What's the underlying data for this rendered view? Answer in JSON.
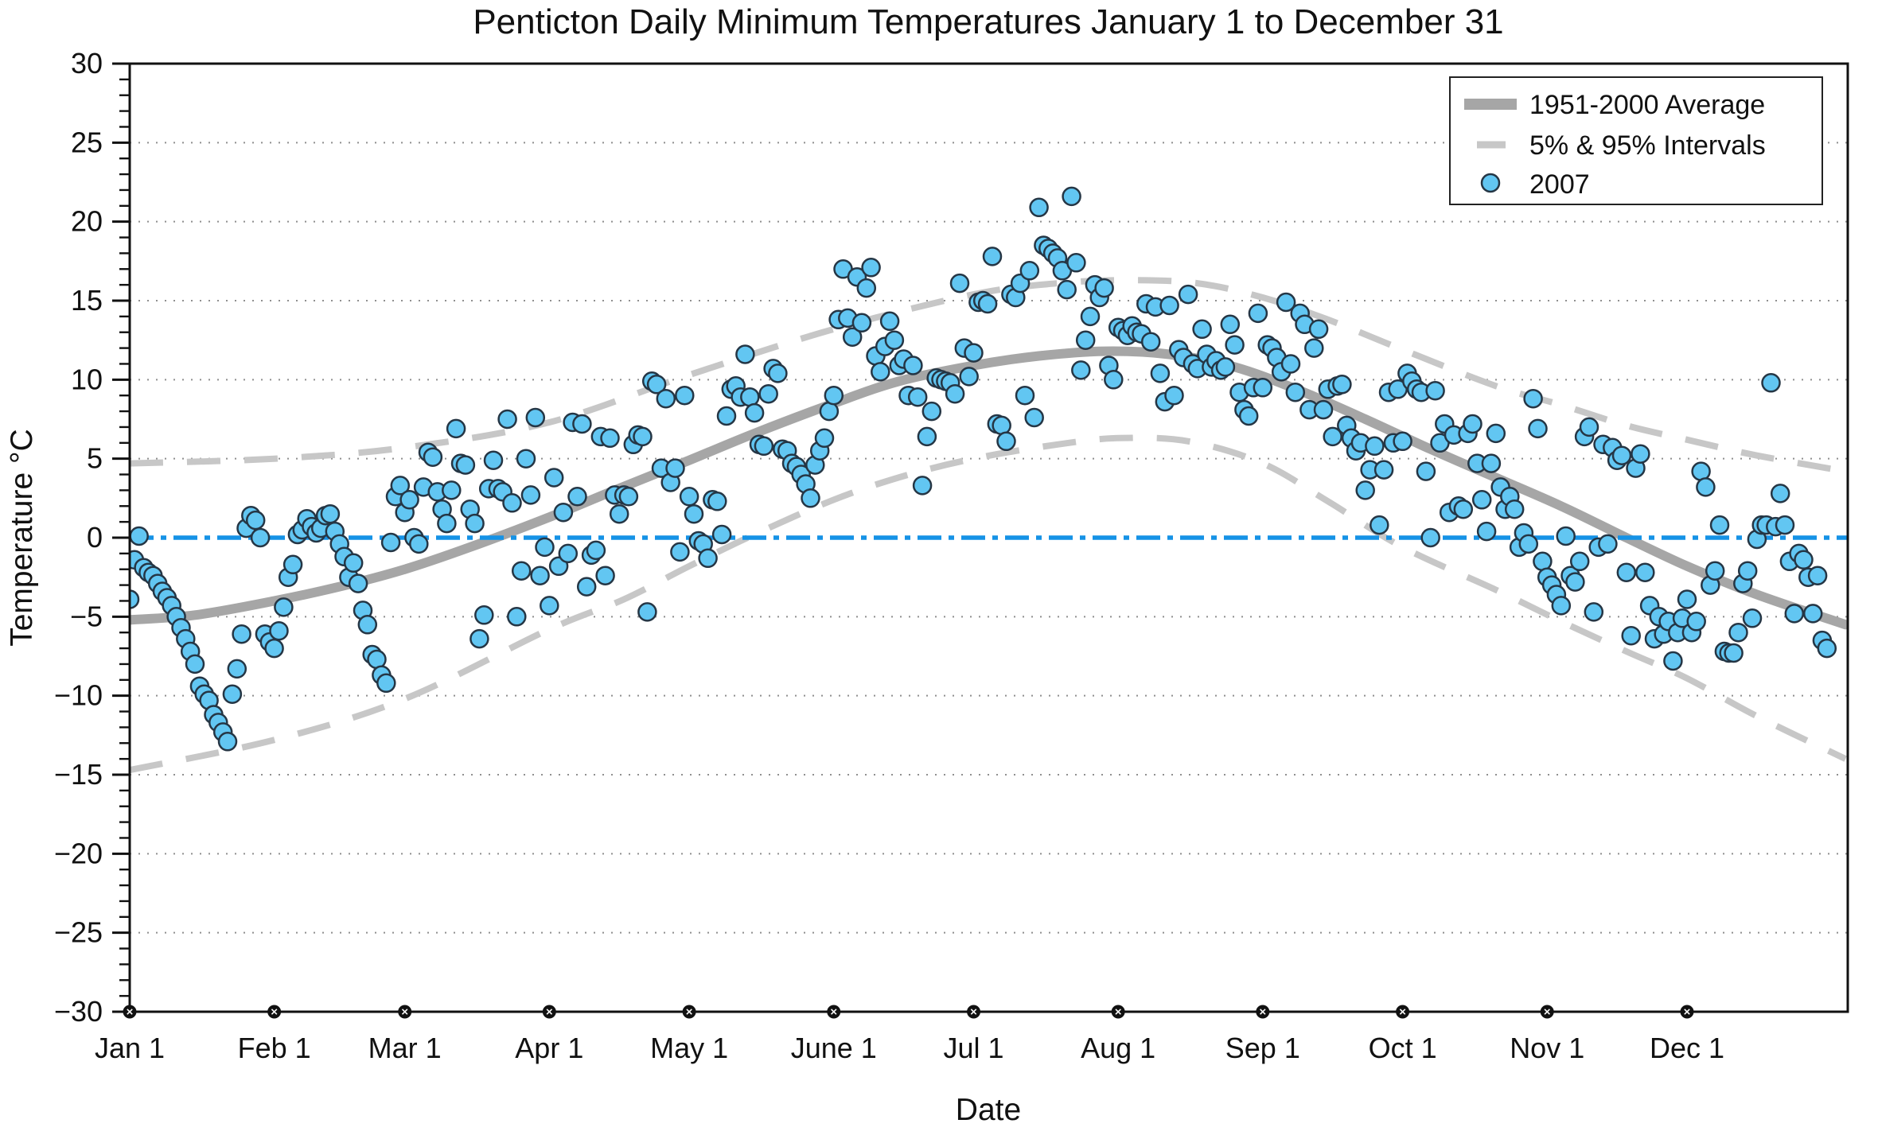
{
  "title": "Penticton Daily Minimum Temperatures January 1 to December 31",
  "axes": {
    "x_label": "Date",
    "y_label": "Temperature °C",
    "y_tick_labels": [
      "30",
      "25",
      "20",
      "15",
      "10",
      "5",
      "0",
      "−5",
      "−10",
      "−15",
      "−20",
      "−25",
      "−30"
    ],
    "y_tick_values": [
      30,
      25,
      20,
      15,
      10,
      5,
      0,
      -5,
      -10,
      -15,
      -20,
      -25,
      -30
    ],
    "x_tick_labels": [
      "Jan 1",
      "Feb 1",
      "Mar 1",
      "Apr 1",
      "May 1",
      "June 1",
      "Jul 1",
      "Aug 1",
      "Sep 1",
      "Oct 1",
      "Nov 1",
      "Dec 1"
    ],
    "x_tick_days": [
      1,
      32,
      60,
      91,
      121,
      152,
      182,
      213,
      244,
      274,
      305,
      335
    ],
    "ylim": [
      -30,
      30
    ],
    "grid_values": [
      25,
      20,
      15,
      10,
      5,
      -5,
      -10,
      -15,
      -20,
      -25
    ]
  },
  "legend": {
    "items": [
      {
        "label": "1951-2000 Average",
        "swatch": "thick-line"
      },
      {
        "label": "5% & 95% Intervals",
        "swatch": "dashed-line"
      },
      {
        "label": "2007",
        "swatch": "dot"
      }
    ]
  },
  "colors": {
    "average_line": "#a6a6a6",
    "interval_line": "#c7c7c7",
    "zero_line": "#1592e6",
    "dot_fill": "#62c6f2",
    "dot_edge": "#253645",
    "grid": "#8f8f8f",
    "axis": "#111111",
    "month_marker": "#111111"
  },
  "chart_data": {
    "type": "scatter",
    "title": "Penticton Daily Minimum Temperatures January 1 to December 31",
    "xlabel": "Date",
    "ylabel": "Temperature °C",
    "ylim": [
      -30,
      30
    ],
    "x_unit": "day_of_year",
    "grid": "dotted horizontal at multiples of 5",
    "legend_position": "top-right",
    "zero_reference_line": 0,
    "series": [
      {
        "name": "1951-2000 Average",
        "type": "line",
        "points": [
          [
            1,
            -5.2
          ],
          [
            15,
            -4.9
          ],
          [
            32,
            -4.0
          ],
          [
            46,
            -3.1
          ],
          [
            60,
            -2.0
          ],
          [
            74,
            -0.6
          ],
          [
            91,
            1.3
          ],
          [
            105,
            3.0
          ],
          [
            121,
            4.9
          ],
          [
            135,
            6.6
          ],
          [
            152,
            8.5
          ],
          [
            166,
            9.9
          ],
          [
            182,
            10.9
          ],
          [
            196,
            11.5
          ],
          [
            210,
            11.8
          ],
          [
            224,
            11.6
          ],
          [
            238,
            10.8
          ],
          [
            252,
            9.3
          ],
          [
            266,
            7.5
          ],
          [
            280,
            5.6
          ],
          [
            294,
            3.8
          ],
          [
            308,
            2.0
          ],
          [
            322,
            0.0
          ],
          [
            335,
            -1.8
          ],
          [
            350,
            -3.6
          ],
          [
            369,
            -5.5
          ]
        ]
      },
      {
        "name": "95% Interval",
        "type": "dashed-line",
        "points": [
          [
            1,
            4.7
          ],
          [
            32,
            5.0
          ],
          [
            60,
            5.7
          ],
          [
            91,
            7.3
          ],
          [
            121,
            10.3
          ],
          [
            152,
            13.2
          ],
          [
            182,
            15.4
          ],
          [
            200,
            16.1
          ],
          [
            215,
            16.3
          ],
          [
            230,
            16.1
          ],
          [
            244,
            15.2
          ],
          [
            258,
            13.8
          ],
          [
            274,
            11.9
          ],
          [
            294,
            9.6
          ],
          [
            308,
            8.4
          ],
          [
            322,
            7.1
          ],
          [
            335,
            6.2
          ],
          [
            350,
            5.2
          ],
          [
            369,
            4.2
          ]
        ]
      },
      {
        "name": "5% Interval",
        "type": "dashed-line",
        "points": [
          [
            1,
            -14.7
          ],
          [
            32,
            -12.8
          ],
          [
            60,
            -10.2
          ],
          [
            91,
            -5.8
          ],
          [
            107,
            -3.9
          ],
          [
            121,
            -1.8
          ],
          [
            135,
            0.2
          ],
          [
            152,
            2.4
          ],
          [
            167,
            3.9
          ],
          [
            182,
            5.0
          ],
          [
            200,
            5.9
          ],
          [
            213,
            6.3
          ],
          [
            228,
            6.1
          ],
          [
            244,
            4.7
          ],
          [
            258,
            2.3
          ],
          [
            274,
            -0.6
          ],
          [
            294,
            -3.3
          ],
          [
            308,
            -5.3
          ],
          [
            322,
            -7.2
          ],
          [
            335,
            -8.9
          ],
          [
            350,
            -11.3
          ],
          [
            369,
            -14.0
          ]
        ]
      },
      {
        "name": "2007",
        "type": "scatter",
        "start_day": 1,
        "values": [
          -3.9,
          -1.4,
          0.1,
          -1.9,
          -2.2,
          -2.4,
          -2.9,
          -3.4,
          -3.8,
          -4.3,
          -5.0,
          -5.7,
          -6.4,
          -7.2,
          -8.0,
          -9.4,
          -9.9,
          -10.3,
          -11.2,
          -11.7,
          -12.3,
          -12.9,
          -9.9,
          -8.3,
          -6.1,
          0.6,
          1.4,
          1.1,
          0.0,
          -6.1,
          -6.6,
          -7.0,
          -5.9,
          -4.4,
          -2.5,
          -1.7,
          0.2,
          0.5,
          1.2,
          0.7,
          0.3,
          0.6,
          1.4,
          1.5,
          0.4,
          -0.4,
          -1.2,
          -2.5,
          -1.6,
          -2.9,
          -4.6,
          -5.5,
          -7.4,
          -7.7,
          -8.7,
          -9.2,
          -0.3,
          2.6,
          3.3,
          1.6,
          2.4,
          0.0,
          -0.4,
          3.2,
          5.4,
          5.1,
          2.9,
          1.8,
          0.9,
          3.0,
          6.9,
          4.7,
          4.6,
          1.8,
          0.9,
          -6.4,
          -4.9,
          3.1,
          4.9,
          3.1,
          2.9,
          7.5,
          2.2,
          -5.0,
          -2.1,
          5.0,
          2.7,
          7.6,
          -2.4,
          -0.6,
          -4.3,
          3.8,
          -1.8,
          1.6,
          -1.0,
          7.3,
          2.6,
          7.2,
          -3.1,
          -1.1,
          -0.8,
          6.4,
          -2.4,
          6.3,
          2.7,
          1.5,
          2.7,
          2.6,
          5.9,
          6.5,
          6.4,
          -4.7,
          9.9,
          9.7,
          4.4,
          8.8,
          3.5,
          4.4,
          -0.9,
          9.0,
          2.6,
          1.5,
          -0.2,
          -0.4,
          -1.3,
          2.4,
          2.3,
          0.2,
          7.7,
          9.4,
          9.6,
          8.9,
          11.6,
          8.9,
          7.9,
          5.9,
          5.8,
          9.1,
          10.7,
          10.4,
          5.6,
          5.5,
          4.7,
          4.5,
          4.0,
          3.4,
          2.5,
          4.6,
          5.5,
          6.3,
          8.0,
          9.0,
          13.8,
          17.0,
          13.9,
          12.7,
          16.5,
          13.6,
          15.8,
          17.1,
          11.5,
          10.5,
          12.1,
          13.7,
          12.5,
          10.9,
          11.3,
          9.0,
          10.9,
          8.9,
          3.3,
          6.4,
          8.0,
          10.1,
          10.0,
          9.9,
          9.8,
          9.1,
          16.1,
          12.0,
          10.2,
          11.7,
          14.9,
          15.0,
          14.8,
          17.8,
          7.2,
          7.1,
          6.1,
          15.4,
          15.2,
          16.1,
          9.0,
          16.9,
          7.6,
          20.9,
          18.5,
          18.3,
          18.0,
          17.7,
          16.9,
          15.7,
          21.6,
          17.4,
          10.6,
          12.5,
          14.0,
          16.0,
          15.2,
          15.8,
          10.9,
          10.0,
          13.3,
          13.1,
          12.8,
          13.4,
          13.0,
          12.9,
          14.8,
          12.4,
          14.6,
          10.4,
          8.6,
          14.7,
          9.0,
          11.9,
          11.4,
          15.4,
          11.0,
          10.7,
          13.2,
          11.6,
          10.8,
          11.2,
          10.6,
          10.8,
          13.5,
          12.2,
          9.2,
          8.1,
          7.7,
          9.5,
          14.2,
          9.5,
          12.2,
          12.0,
          11.4,
          10.5,
          14.9,
          11.0,
          9.2,
          14.2,
          13.5,
          8.1,
          12.0,
          13.2,
          8.1,
          9.4,
          6.4,
          9.6,
          9.7,
          7.1,
          6.3,
          5.5,
          6.0,
          3.0,
          4.3,
          5.8,
          0.8,
          4.3,
          9.2,
          6.0,
          9.4,
          6.1,
          10.4,
          9.9,
          9.4,
          9.2,
          4.2,
          0.0,
          9.3,
          6.0,
          7.2,
          1.6,
          6.5,
          2.0,
          1.8,
          6.6,
          7.2,
          4.7,
          2.4,
          0.4,
          4.7,
          6.6,
          3.2,
          1.8,
          2.6,
          1.8,
          -0.6,
          0.3,
          -0.4,
          8.8,
          6.9,
          -1.5,
          -2.5,
          -3.0,
          -3.6,
          -4.3,
          0.1,
          -2.4,
          -2.8,
          -1.5,
          6.4,
          7.0,
          -4.7,
          -0.6,
          5.9,
          -0.4,
          5.7,
          4.9,
          5.2,
          -2.2,
          -6.2,
          4.4,
          5.3,
          -2.2,
          -4.3,
          -6.4,
          -5.0,
          -6.1,
          -5.3,
          -7.8,
          -6.0,
          -5.1,
          -3.9,
          -6.0,
          -5.3,
          4.2,
          3.2,
          -3.0,
          -2.1,
          0.8,
          -7.2,
          -7.3,
          -7.3,
          -6.0,
          -2.9,
          -2.1,
          -5.1,
          -0.1,
          0.8,
          0.8,
          9.8,
          0.7,
          2.8,
          0.8,
          -1.5,
          -4.8,
          -1.0,
          -1.4,
          -2.5,
          -4.8,
          -2.4,
          -6.5,
          -7.0
        ]
      }
    ]
  }
}
